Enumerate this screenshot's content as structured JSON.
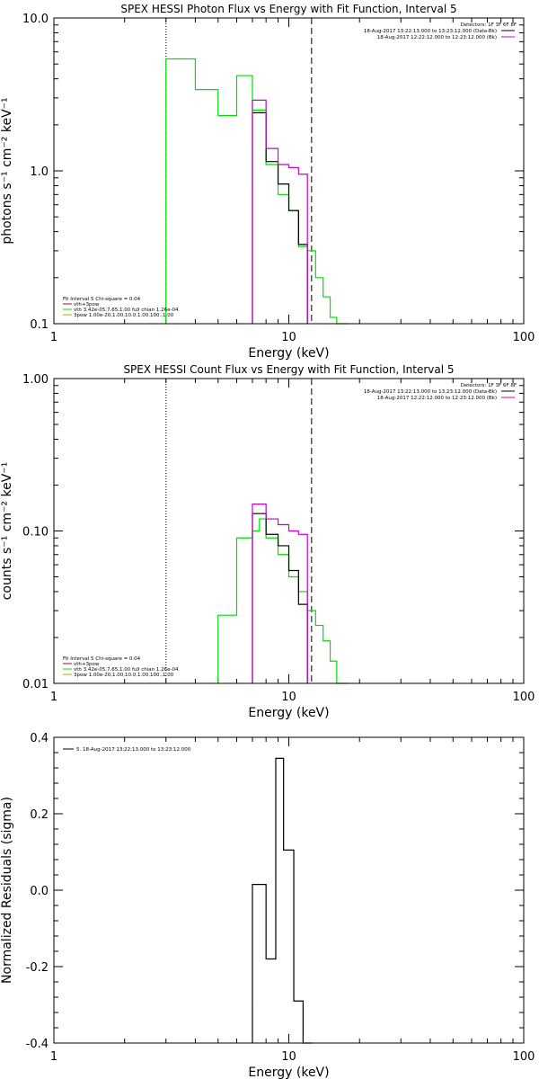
{
  "colors": {
    "black": "#000000",
    "green": "#00dd00",
    "magenta": "#cc00cc",
    "red": "#cc0000",
    "orange": "#cc9900"
  },
  "chart_data": [
    {
      "type": "line",
      "title": "SPEX HESSI Photon Flux vs Energy with Fit Function, Interval 5",
      "xlabel": "Energy (keV)",
      "ylabel": "photons s⁻¹ cm⁻² keV⁻¹",
      "xscale": "log",
      "yscale": "log",
      "xlim": [
        1,
        100
      ],
      "ylim": [
        0.1,
        10
      ],
      "xticks": [
        1,
        10,
        100
      ],
      "xticklabels": [
        "1",
        "10",
        "100"
      ],
      "yticks": [
        0.1,
        1,
        10
      ],
      "yticklabels": [
        "0.1",
        "1.0",
        "10.0"
      ],
      "vlines": [
        {
          "x": 3,
          "style": "dotted"
        },
        {
          "x": 12.5,
          "style": "dashed"
        }
      ],
      "legend_top": {
        "position": "top-right",
        "header": "Detectors: 1F 3F 6F 8F",
        "entries": [
          {
            "label": "18-Aug-2017 13:22:13.000 to 13:23:12.000 (Data-Bk)",
            "color": "#000000"
          },
          {
            "label": "18-Aug-2017 12:22:12.000 to 12:23:12.000 (Bk)",
            "color": "#cc00cc"
          }
        ]
      },
      "legend_fit": {
        "position": "bottom-left",
        "header": "Fit Interval 5   Chi-square = 0.04",
        "entries": [
          {
            "label": "vth+3pow",
            "color": "#cc0000"
          },
          {
            "label": "vth 3.42e-05,7.65,1.00   full chian 1.26e-04",
            "color": "#00dd00"
          },
          {
            "label": "3pow 1.00e-20,1.00,10.0,1.00,100.,1.00",
            "color": "#cc9900"
          }
        ]
      },
      "series": [
        {
          "color": "#00dd00",
          "edges": [
            3,
            3.5,
            4,
            4.5,
            5,
            5.5,
            6,
            6.5,
            7,
            7.5,
            8,
            8.5,
            9,
            9.5,
            10,
            10.5,
            11,
            11.5,
            12,
            13,
            14,
            15,
            16,
            18
          ],
          "values": [
            5.4,
            5.4,
            3.4,
            3.4,
            2.3,
            2.3,
            4.2,
            4.2,
            2.5,
            2.5,
            1.1,
            1.1,
            0.7,
            0.7,
            0.55,
            0.55,
            0.32,
            0.32,
            0.3,
            0.2,
            0.15,
            0.11,
            0.1
          ]
        },
        {
          "color": "#000000",
          "edges": [
            7,
            8,
            8.5,
            9,
            9.5,
            10,
            10.5,
            11,
            12
          ],
          "values": [
            2.4,
            1.15,
            1.15,
            0.82,
            0.82,
            0.55,
            0.55,
            0.33
          ]
        },
        {
          "color": "#cc00cc",
          "edges": [
            7,
            8,
            8.5,
            9,
            9.5,
            10,
            10.5,
            11,
            12
          ],
          "values": [
            2.9,
            1.4,
            1.4,
            1.1,
            1.1,
            1.05,
            1.05,
            0.95
          ]
        }
      ]
    },
    {
      "type": "line",
      "title": "SPEX HESSI Count Flux vs Energy with Fit Function, Interval 5",
      "xlabel": "Energy (keV)",
      "ylabel": "counts s⁻¹ cm⁻² keV⁻¹",
      "xscale": "log",
      "yscale": "log",
      "xlim": [
        1,
        100
      ],
      "ylim": [
        0.01,
        1
      ],
      "xticks": [
        1,
        10,
        100
      ],
      "xticklabels": [
        "1",
        "10",
        "100"
      ],
      "yticks": [
        0.01,
        0.1,
        1
      ],
      "yticklabels": [
        "0.01",
        "0.10",
        "1.00"
      ],
      "vlines": [
        {
          "x": 3,
          "style": "dotted"
        },
        {
          "x": 12.5,
          "style": "dashed"
        }
      ],
      "legend_top": {
        "position": "top-right",
        "header": "Detectors: 1F 3F 6F 8F",
        "entries": [
          {
            "label": "18-Aug-2017 13:22:13.000 to 13:23:12.000 (Data-Bk)",
            "color": "#000000"
          },
          {
            "label": "18-Aug-2017 12:22:12.000 to 12:23:12.000 (Bk)",
            "color": "#cc00cc"
          }
        ]
      },
      "legend_fit": {
        "position": "bottom-left",
        "header": "Fit Interval 5   Chi-square = 0.04",
        "entries": [
          {
            "label": "vth+3pow",
            "color": "#cc0000"
          },
          {
            "label": "vth 3.42e-05,7.65,1.00   full chian 1.26e-04",
            "color": "#00dd00"
          },
          {
            "label": "3pow 1.00e-20,1.00,10.0,1.00,100.,1.00",
            "color": "#cc9900"
          }
        ]
      },
      "series": [
        {
          "color": "#00dd00",
          "edges": [
            5,
            5.5,
            6,
            6.5,
            7,
            7.5,
            8,
            8.5,
            9,
            9.5,
            10,
            10.5,
            11,
            11.5,
            12,
            13,
            14,
            15,
            16,
            18
          ],
          "values": [
            0.028,
            0.028,
            0.09,
            0.09,
            0.1,
            0.12,
            0.09,
            0.09,
            0.07,
            0.07,
            0.05,
            0.05,
            0.04,
            0.04,
            0.03,
            0.024,
            0.019,
            0.014,
            0.01
          ]
        },
        {
          "color": "#000000",
          "edges": [
            7,
            8,
            8.5,
            9,
            9.5,
            10,
            10.5,
            11,
            12
          ],
          "values": [
            0.13,
            0.095,
            0.095,
            0.08,
            0.08,
            0.055,
            0.055,
            0.033
          ]
        },
        {
          "color": "#cc00cc",
          "edges": [
            7,
            8,
            8.5,
            9,
            9.5,
            10,
            10.5,
            11,
            12
          ],
          "values": [
            0.15,
            0.12,
            0.12,
            0.11,
            0.11,
            0.1,
            0.1,
            0.095
          ]
        }
      ]
    },
    {
      "type": "line",
      "title": "",
      "xlabel": "Energy (keV)",
      "ylabel": "Normalized Residuals (sigma)",
      "xscale": "log",
      "yscale": "linear",
      "xlim": [
        1,
        100
      ],
      "ylim": [
        -0.4,
        0.4
      ],
      "xticks": [
        1,
        10,
        100
      ],
      "xticklabels": [
        "1",
        "10",
        "100"
      ],
      "yticks": [
        -0.4,
        -0.2,
        0.0,
        0.2,
        0.4
      ],
      "yticklabels": [
        "-0.4",
        "-0.2",
        "0.0",
        "0.2",
        "0.4"
      ],
      "legend_top": {
        "position": "top-left",
        "entries": [
          {
            "label": "5. 18-Aug-2017 13:22:13.000 to 13:23:12.000",
            "color": "#000000"
          }
        ]
      },
      "series": [
        {
          "color": "#000000",
          "edges": [
            7,
            8,
            8.8,
            9.5,
            10.5,
            11.5,
            12.5
          ],
          "values": [
            0.015,
            -0.18,
            0.345,
            0.105,
            -0.29,
            -0.4
          ]
        }
      ]
    }
  ]
}
